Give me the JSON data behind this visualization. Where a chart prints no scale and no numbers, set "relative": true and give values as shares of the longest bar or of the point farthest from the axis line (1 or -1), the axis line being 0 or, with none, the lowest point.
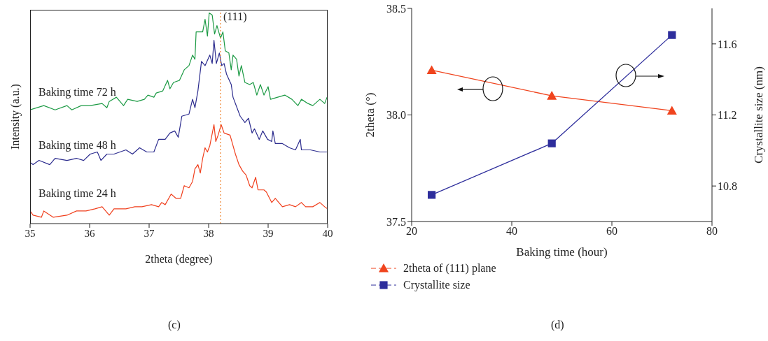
{
  "chart_data": [
    {
      "type": "line",
      "xlabel": "2theta (degree)",
      "ylabel": "Intensity (a.u.)",
      "relative": true,
      "xlim": [
        35,
        40
      ],
      "xticks": [
        35,
        36,
        37,
        38,
        39,
        40
      ],
      "annotations": [
        "(c)",
        {
          "text": "(111)",
          "x": 38.2,
          "y": 0.98
        }
      ],
      "ref_lines": [
        {
          "axis": "x",
          "value": 38.2,
          "color": "#f08c3c",
          "line_style": "dotted"
        }
      ],
      "series": [
        {
          "name": "Baking time 72 h",
          "color": "#1c9a44",
          "x": [
            35.0,
            35.23,
            35.42,
            35.62,
            35.7,
            35.86,
            36.01,
            36.21,
            36.29,
            36.33,
            36.45,
            36.57,
            36.64,
            36.8,
            36.92,
            36.98,
            37.08,
            37.12,
            37.23,
            37.31,
            37.35,
            37.41,
            37.51,
            37.59,
            37.67,
            37.73,
            37.77,
            37.79,
            37.86,
            37.9,
            37.94,
            37.98,
            38.01,
            38.06,
            38.1,
            38.14,
            38.2,
            38.24,
            38.28,
            38.34,
            38.38,
            38.41,
            38.47,
            38.51,
            38.55,
            38.61,
            38.69,
            38.75,
            38.81,
            38.87,
            38.93,
            39.0,
            39.04,
            39.16,
            39.28,
            39.4,
            39.5,
            39.56,
            39.67,
            39.75,
            39.87,
            39.95,
            39.99,
            40.0
          ],
          "values": [
            0.54,
            0.56,
            0.54,
            0.56,
            0.54,
            0.56,
            0.56,
            0.57,
            0.55,
            0.58,
            0.6,
            0.56,
            0.59,
            0.58,
            0.59,
            0.61,
            0.6,
            0.62,
            0.63,
            0.68,
            0.64,
            0.67,
            0.68,
            0.73,
            0.75,
            0.8,
            0.78,
            0.91,
            0.91,
            0.91,
            0.97,
            0.89,
            1.0,
            0.99,
            0.9,
            0.94,
            0.88,
            0.91,
            0.82,
            0.81,
            0.73,
            0.8,
            0.78,
            0.7,
            0.75,
            0.67,
            0.66,
            0.67,
            0.61,
            0.66,
            0.61,
            0.65,
            0.59,
            0.6,
            0.61,
            0.59,
            0.56,
            0.59,
            0.57,
            0.56,
            0.59,
            0.57,
            0.6,
            0.58
          ]
        },
        {
          "name": "Baking time 48 h",
          "color": "#2c2c8e",
          "x": [
            35.0,
            35.05,
            35.15,
            35.33,
            35.42,
            35.62,
            35.78,
            35.9,
            36.01,
            36.13,
            36.19,
            36.29,
            36.41,
            36.61,
            36.72,
            36.84,
            36.96,
            37.08,
            37.16,
            37.27,
            37.35,
            37.43,
            37.49,
            37.55,
            37.67,
            37.73,
            37.77,
            37.82,
            37.88,
            37.94,
            38.02,
            38.06,
            38.09,
            38.13,
            38.18,
            38.22,
            38.26,
            38.3,
            38.38,
            38.41,
            38.53,
            38.61,
            38.67,
            38.73,
            38.77,
            38.85,
            38.91,
            38.99,
            39.06,
            39.08,
            39.12,
            39.24,
            39.36,
            39.46,
            39.54,
            39.56,
            39.71,
            39.87,
            40.0
          ],
          "values": [
            0.29,
            0.28,
            0.3,
            0.28,
            0.31,
            0.3,
            0.31,
            0.3,
            0.33,
            0.34,
            0.3,
            0.33,
            0.33,
            0.35,
            0.33,
            0.36,
            0.34,
            0.34,
            0.4,
            0.4,
            0.43,
            0.44,
            0.41,
            0.51,
            0.52,
            0.59,
            0.55,
            0.63,
            0.77,
            0.75,
            0.8,
            0.76,
            0.87,
            0.76,
            0.81,
            0.75,
            0.76,
            0.71,
            0.66,
            0.6,
            0.51,
            0.48,
            0.5,
            0.43,
            0.45,
            0.4,
            0.44,
            0.4,
            0.39,
            0.44,
            0.38,
            0.38,
            0.36,
            0.35,
            0.4,
            0.35,
            0.35,
            0.34,
            0.34
          ]
        },
        {
          "name": "Baking time 24 h",
          "color": "#f0401e",
          "x": [
            35.0,
            35.05,
            35.19,
            35.23,
            35.39,
            35.62,
            35.78,
            35.94,
            36.09,
            36.21,
            36.33,
            36.41,
            36.61,
            36.76,
            36.88,
            37.04,
            37.16,
            37.21,
            37.27,
            37.37,
            37.45,
            37.53,
            37.59,
            37.67,
            37.73,
            37.77,
            37.82,
            37.86,
            37.9,
            37.94,
            37.98,
            38.02,
            38.09,
            38.12,
            38.16,
            38.21,
            38.26,
            38.36,
            38.39,
            38.45,
            38.51,
            38.57,
            38.63,
            38.69,
            38.73,
            38.79,
            38.83,
            38.93,
            38.97,
            39.06,
            39.12,
            39.24,
            39.36,
            39.46,
            39.56,
            39.63,
            39.75,
            39.87,
            39.95,
            40.0
          ],
          "values": [
            0.06,
            0.04,
            0.03,
            0.06,
            0.03,
            0.04,
            0.06,
            0.06,
            0.07,
            0.08,
            0.04,
            0.07,
            0.07,
            0.08,
            0.08,
            0.09,
            0.08,
            0.1,
            0.09,
            0.14,
            0.12,
            0.12,
            0.18,
            0.17,
            0.2,
            0.26,
            0.28,
            0.24,
            0.31,
            0.36,
            0.34,
            0.37,
            0.47,
            0.39,
            0.42,
            0.47,
            0.43,
            0.42,
            0.39,
            0.33,
            0.28,
            0.25,
            0.23,
            0.18,
            0.17,
            0.22,
            0.16,
            0.16,
            0.15,
            0.1,
            0.12,
            0.08,
            0.09,
            0.08,
            0.1,
            0.08,
            0.08,
            0.1,
            0.08,
            0.07
          ]
        }
      ]
    },
    {
      "type": "line",
      "xlabel": "Baking time (hour)",
      "ylabel": "2theta (°)",
      "y2label": "Crystallite size (nm)",
      "x": [
        24,
        48,
        72
      ],
      "xlim": [
        20,
        80
      ],
      "xticks": [
        20,
        40,
        60,
        80
      ],
      "ylim": [
        37.5,
        38.5
      ],
      "yticks": [
        37.5,
        {
          "value": 38,
          "label": "38.0"
        },
        38.5
      ],
      "y2lim": [
        10.6,
        11.8
      ],
      "y2ticks": [
        10.8,
        11.2,
        11.6
      ],
      "legend": "bottom",
      "annotations": [
        "(d)"
      ],
      "series": [
        {
          "name": "2theta of (111) plane",
          "color": "#f0441e",
          "marker": "triangle",
          "values": [
            38.21,
            38.09,
            38.02
          ]
        },
        {
          "name": "Crystallite size",
          "color": "#2e2e9c",
          "marker": "square",
          "axis": "y2",
          "values": [
            10.75,
            11.04,
            11.65
          ]
        }
      ]
    }
  ]
}
